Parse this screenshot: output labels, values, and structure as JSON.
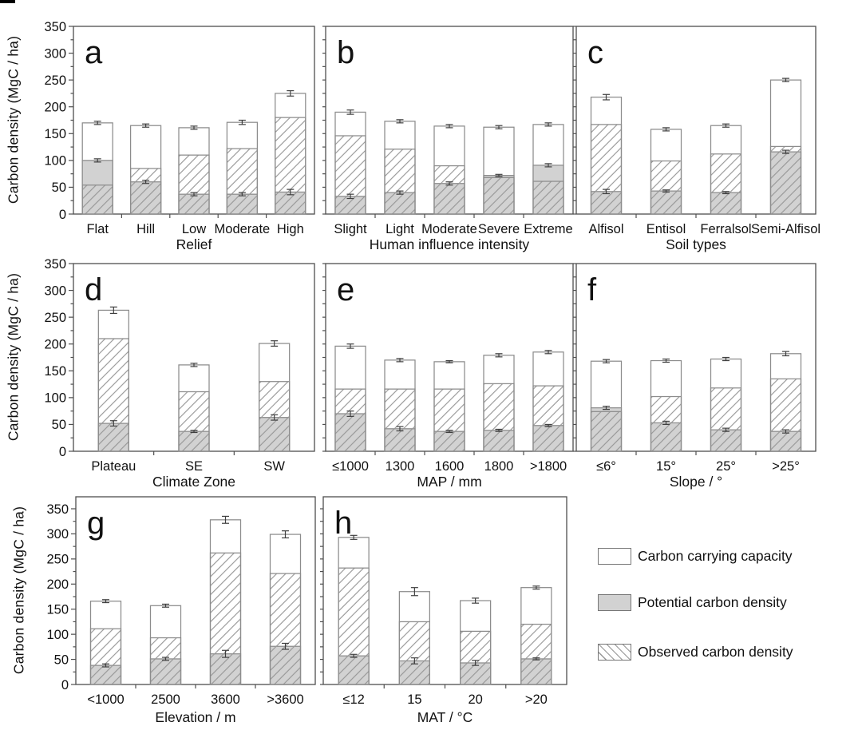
{
  "figure": {
    "kind": "multi-panel bar figure",
    "y_axis_title": "Carbon density (MgC / ha)"
  },
  "legend": {
    "items": [
      {
        "label": "Carbon carrying capacity",
        "swatch": "white"
      },
      {
        "label": "Potential carbon density",
        "swatch": "gray",
        "color": "#d2d2d2"
      },
      {
        "label": "Observed carbon density",
        "swatch": "hatched"
      }
    ]
  },
  "chart_data": {
    "type": "bar",
    "variant": "overlaid-bars-with-error-bars",
    "title": "",
    "ylabel": "Carbon density (MgC / ha)",
    "ylim": [
      0,
      350
    ],
    "yticks": [
      0,
      50,
      100,
      150,
      200,
      250,
      300,
      350
    ],
    "grid": false,
    "legend_position": "bottom-right",
    "series_names": [
      "Carbon carrying capacity",
      "Potential carbon density",
      "Observed carbon density"
    ],
    "panels": [
      {
        "letter": "a",
        "xlabel": "Relief",
        "categories": [
          "Flat",
          "Hill",
          "Low",
          "Moderate",
          "High"
        ],
        "series": [
          {
            "name": "Carbon carrying capacity",
            "values": [
              170,
              165,
              161,
              171,
              225
            ],
            "errors": [
              3,
              3,
              3,
              4,
              5
            ]
          },
          {
            "name": "Potential carbon density",
            "values": [
              100,
              60,
              37,
              37,
              41
            ],
            "errors": [
              3,
              3,
              3,
              3,
              5
            ]
          },
          {
            "name": "Observed carbon density",
            "values": [
              54,
              85,
              110,
              122,
              180
            ]
          }
        ]
      },
      {
        "letter": "b",
        "xlabel": "Human influence intensity",
        "categories": [
          "Slight",
          "Light",
          "Moderate",
          "Severe",
          "Extreme"
        ],
        "series": [
          {
            "name": "Carbon carrying capacity",
            "values": [
              190,
              173,
              164,
              162,
              167
            ],
            "errors": [
              4,
              3,
              3,
              3,
              3
            ]
          },
          {
            "name": "Potential carbon density",
            "values": [
              33,
              40,
              57,
              72,
              91
            ],
            "errors": [
              4,
              3,
              3,
              2,
              3
            ]
          },
          {
            "name": "Observed carbon density",
            "values": [
              146,
              121,
              90,
              68,
              61
            ]
          }
        ]
      },
      {
        "letter": "c",
        "xlabel": "Soil types",
        "categories": [
          "Alfisol",
          "Entisol",
          "Ferralsol",
          "Semi-Alfisol"
        ],
        "series": [
          {
            "name": "Carbon carrying capacity",
            "values": [
              218,
              158,
              165,
              250
            ],
            "errors": [
              5,
              3,
              3,
              3
            ]
          },
          {
            "name": "Potential carbon density",
            "values": [
              42,
              43,
              40,
              116
            ],
            "errors": [
              4,
              2,
              2,
              3
            ]
          },
          {
            "name": "Observed carbon density",
            "values": [
              167,
              99,
              112,
              126
            ]
          }
        ]
      },
      {
        "letter": "d",
        "xlabel": "Climate Zone",
        "categories": [
          "Plateau",
          "SE",
          "SW"
        ],
        "series": [
          {
            "name": "Carbon carrying capacity",
            "values": [
              263,
              161,
              201
            ],
            "errors": [
              6,
              3,
              5
            ]
          },
          {
            "name": "Potential carbon density",
            "values": [
              52,
              37,
              63
            ],
            "errors": [
              5,
              2,
              5
            ]
          },
          {
            "name": "Observed carbon density",
            "values": [
              210,
              111,
              130
            ]
          }
        ]
      },
      {
        "letter": "e",
        "xlabel": "MAP / mm",
        "categories": [
          "≤1000",
          "1300",
          "1600",
          "1800",
          ">1800"
        ],
        "series": [
          {
            "name": "Carbon carrying capacity",
            "values": [
              196,
              170,
              167,
              179,
              185
            ],
            "errors": [
              4,
              3,
              2,
              3,
              3
            ]
          },
          {
            "name": "Potential carbon density",
            "values": [
              70,
              42,
              37,
              39,
              48
            ],
            "errors": [
              5,
              4,
              2,
              2,
              2
            ]
          },
          {
            "name": "Observed carbon density",
            "values": [
              116,
              116,
              116,
              126,
              122
            ]
          }
        ]
      },
      {
        "letter": "f",
        "xlabel": "Slope / °",
        "categories": [
          "≤6°",
          "15°",
          "25°",
          ">25°"
        ],
        "series": [
          {
            "name": "Carbon carrying capacity",
            "values": [
              168,
              169,
              172,
              182
            ],
            "errors": [
              3,
              3,
              3,
              4
            ]
          },
          {
            "name": "Potential carbon density",
            "values": [
              81,
              53,
              40,
              37
            ],
            "errors": [
              3,
              3,
              3,
              3
            ]
          },
          {
            "name": "Observed carbon density",
            "values": [
              74,
              102,
              118,
              135
            ]
          }
        ]
      },
      {
        "letter": "g",
        "xlabel": "Elevation / m",
        "categories": [
          "<1000",
          "2500",
          "3600",
          ">3600"
        ],
        "series": [
          {
            "name": "Carbon carrying capacity",
            "values": [
              166,
              157,
              328,
              299
            ],
            "errors": [
              3,
              3,
              7,
              7
            ]
          },
          {
            "name": "Potential carbon density",
            "values": [
              38,
              51,
              61,
              76
            ],
            "errors": [
              3,
              3,
              7,
              6
            ]
          },
          {
            "name": "Observed carbon density",
            "values": [
              111,
              93,
              262,
              221
            ]
          }
        ]
      },
      {
        "letter": "h",
        "xlabel": "MAT / °C",
        "categories": [
          "≤12",
          "15",
          "20",
          ">20"
        ],
        "series": [
          {
            "name": "Carbon carrying capacity",
            "values": [
              293,
              185,
              167,
              193
            ],
            "errors": [
              4,
              8,
              5,
              3
            ]
          },
          {
            "name": "Potential carbon density",
            "values": [
              57,
              47,
              43,
              51
            ],
            "errors": [
              3,
              6,
              5,
              2
            ]
          },
          {
            "name": "Observed carbon density",
            "values": [
              232,
              125,
              106,
              120
            ]
          }
        ]
      }
    ]
  }
}
